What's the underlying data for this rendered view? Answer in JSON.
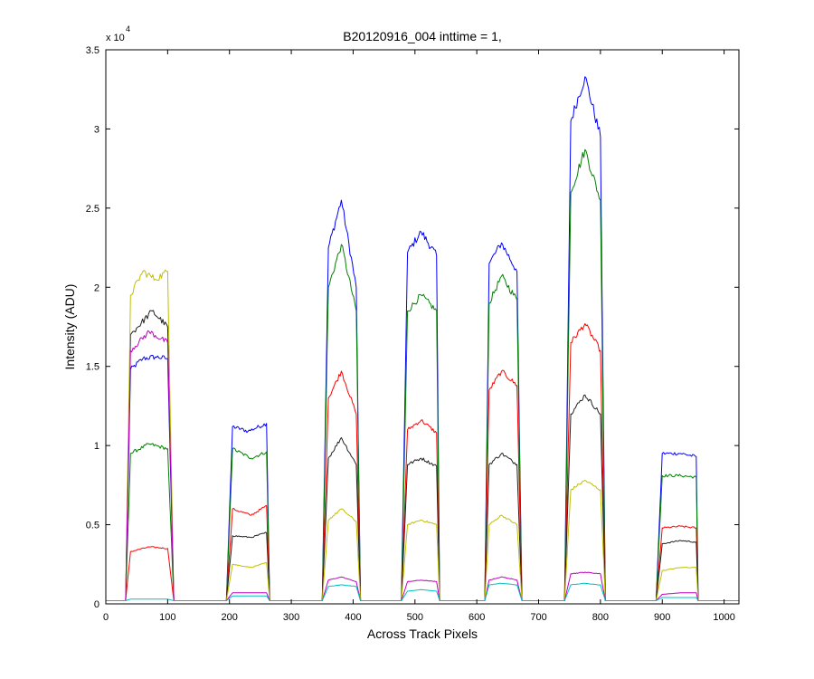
{
  "chart_data": {
    "type": "line",
    "title": "B20120916_004 inttime = 1,",
    "xlabel": "Across Track Pixels",
    "ylabel": "Intensity (ADU)",
    "y_exponent_label": "x 10",
    "y_exponent_power": "4",
    "xlim": [
      0,
      1024
    ],
    "ylim": [
      0,
      3.5
    ],
    "x_ticks": [
      0,
      100,
      200,
      300,
      400,
      500,
      600,
      700,
      800,
      900,
      1000
    ],
    "x_tick_labels": [
      "0",
      "100",
      "200",
      "300",
      "400",
      "500",
      "600",
      "700",
      "800",
      "900",
      "1000"
    ],
    "y_ticks": [
      0,
      0.5,
      1,
      1.5,
      2,
      2.5,
      3,
      3.5
    ],
    "y_tick_labels": [
      "0",
      "0.5",
      "1",
      "1.5",
      "2",
      "2.5",
      "3",
      "3.5"
    ],
    "grid": false,
    "legend": false,
    "segments": [
      {
        "start": 32,
        "end": 110
      },
      {
        "start": 195,
        "end": 265
      },
      {
        "start": 350,
        "end": 412
      },
      {
        "start": 478,
        "end": 540
      },
      {
        "start": 613,
        "end": 673
      },
      {
        "start": 742,
        "end": 808
      },
      {
        "start": 890,
        "end": 958
      }
    ],
    "series": [
      {
        "color": "#0000ff",
        "values": [
          [
            0,
            0.02
          ],
          [
            32,
            0.02
          ],
          [
            40,
            1.48
          ],
          [
            60,
            1.55
          ],
          [
            80,
            1.56
          ],
          [
            100,
            1.55
          ],
          [
            110,
            0.02
          ],
          [
            195,
            0.02
          ],
          [
            205,
            1.12
          ],
          [
            230,
            1.09
          ],
          [
            260,
            1.14
          ],
          [
            265,
            0.02
          ],
          [
            350,
            0.02
          ],
          [
            360,
            2.25
          ],
          [
            381,
            2.55
          ],
          [
            405,
            2.0
          ],
          [
            412,
            0.02
          ],
          [
            478,
            0.02
          ],
          [
            488,
            2.22
          ],
          [
            510,
            2.35
          ],
          [
            535,
            2.2
          ],
          [
            540,
            0.02
          ],
          [
            613,
            0.02
          ],
          [
            620,
            2.15
          ],
          [
            640,
            2.28
          ],
          [
            665,
            2.1
          ],
          [
            673,
            0.02
          ],
          [
            742,
            0.02
          ],
          [
            752,
            3.05
          ],
          [
            775,
            3.33
          ],
          [
            800,
            2.95
          ],
          [
            808,
            0.02
          ],
          [
            890,
            0.02
          ],
          [
            900,
            0.95
          ],
          [
            930,
            0.95
          ],
          [
            955,
            0.93
          ],
          [
            958,
            0.02
          ],
          [
            1024,
            0.02
          ]
        ]
      },
      {
        "color": "#008000",
        "values": [
          [
            0,
            0.02
          ],
          [
            32,
            0.02
          ],
          [
            40,
            0.95
          ],
          [
            70,
            1.01
          ],
          [
            100,
            0.98
          ],
          [
            110,
            0.02
          ],
          [
            195,
            0.02
          ],
          [
            205,
            0.98
          ],
          [
            235,
            0.92
          ],
          [
            260,
            0.96
          ],
          [
            265,
            0.02
          ],
          [
            350,
            0.02
          ],
          [
            360,
            2.0
          ],
          [
            381,
            2.27
          ],
          [
            405,
            1.85
          ],
          [
            412,
            0.02
          ],
          [
            478,
            0.02
          ],
          [
            488,
            1.85
          ],
          [
            510,
            1.95
          ],
          [
            535,
            1.85
          ],
          [
            540,
            0.02
          ],
          [
            613,
            0.02
          ],
          [
            620,
            1.9
          ],
          [
            640,
            2.07
          ],
          [
            665,
            1.92
          ],
          [
            673,
            0.02
          ],
          [
            742,
            0.02
          ],
          [
            752,
            2.6
          ],
          [
            775,
            2.87
          ],
          [
            800,
            2.55
          ],
          [
            808,
            0.02
          ],
          [
            890,
            0.02
          ],
          [
            900,
            0.81
          ],
          [
            930,
            0.81
          ],
          [
            955,
            0.8
          ],
          [
            958,
            0.02
          ],
          [
            1024,
            0.02
          ]
        ]
      },
      {
        "color": "#ff0000",
        "values": [
          [
            0,
            0.02
          ],
          [
            32,
            0.02
          ],
          [
            40,
            0.33
          ],
          [
            70,
            0.36
          ],
          [
            100,
            0.35
          ],
          [
            110,
            0.02
          ],
          [
            195,
            0.02
          ],
          [
            205,
            0.6
          ],
          [
            235,
            0.56
          ],
          [
            260,
            0.62
          ],
          [
            265,
            0.02
          ],
          [
            350,
            0.02
          ],
          [
            360,
            1.3
          ],
          [
            381,
            1.47
          ],
          [
            405,
            1.2
          ],
          [
            412,
            0.02
          ],
          [
            478,
            0.02
          ],
          [
            488,
            1.1
          ],
          [
            510,
            1.16
          ],
          [
            535,
            1.08
          ],
          [
            540,
            0.02
          ],
          [
            613,
            0.02
          ],
          [
            620,
            1.35
          ],
          [
            640,
            1.47
          ],
          [
            665,
            1.38
          ],
          [
            673,
            0.02
          ],
          [
            742,
            0.02
          ],
          [
            752,
            1.65
          ],
          [
            775,
            1.77
          ],
          [
            800,
            1.6
          ],
          [
            808,
            0.02
          ],
          [
            890,
            0.02
          ],
          [
            900,
            0.48
          ],
          [
            930,
            0.49
          ],
          [
            955,
            0.48
          ],
          [
            958,
            0.02
          ],
          [
            1024,
            0.02
          ]
        ]
      },
      {
        "color": "#222222",
        "values": [
          [
            0,
            0.02
          ],
          [
            32,
            0.02
          ],
          [
            40,
            1.7
          ],
          [
            75,
            1.85
          ],
          [
            100,
            1.75
          ],
          [
            110,
            0.02
          ],
          [
            195,
            0.02
          ],
          [
            205,
            0.43
          ],
          [
            235,
            0.42
          ],
          [
            260,
            0.45
          ],
          [
            265,
            0.02
          ],
          [
            350,
            0.02
          ],
          [
            360,
            0.92
          ],
          [
            381,
            1.05
          ],
          [
            405,
            0.88
          ],
          [
            412,
            0.02
          ],
          [
            478,
            0.02
          ],
          [
            488,
            0.88
          ],
          [
            510,
            0.92
          ],
          [
            535,
            0.87
          ],
          [
            540,
            0.02
          ],
          [
            613,
            0.02
          ],
          [
            620,
            0.88
          ],
          [
            640,
            0.95
          ],
          [
            665,
            0.88
          ],
          [
            673,
            0.02
          ],
          [
            742,
            0.02
          ],
          [
            752,
            1.2
          ],
          [
            775,
            1.32
          ],
          [
            800,
            1.2
          ],
          [
            808,
            0.02
          ],
          [
            890,
            0.02
          ],
          [
            900,
            0.38
          ],
          [
            930,
            0.4
          ],
          [
            955,
            0.39
          ],
          [
            958,
            0.02
          ],
          [
            1024,
            0.02
          ]
        ]
      },
      {
        "color": "#c0c000",
        "values": [
          [
            0,
            0.02
          ],
          [
            32,
            0.02
          ],
          [
            40,
            1.95
          ],
          [
            60,
            2.1
          ],
          [
            80,
            2.05
          ],
          [
            100,
            2.1
          ],
          [
            110,
            0.02
          ],
          [
            195,
            0.02
          ],
          [
            205,
            0.25
          ],
          [
            235,
            0.23
          ],
          [
            260,
            0.26
          ],
          [
            265,
            0.02
          ],
          [
            350,
            0.02
          ],
          [
            360,
            0.53
          ],
          [
            381,
            0.6
          ],
          [
            405,
            0.52
          ],
          [
            412,
            0.02
          ],
          [
            478,
            0.02
          ],
          [
            488,
            0.5
          ],
          [
            510,
            0.53
          ],
          [
            535,
            0.5
          ],
          [
            540,
            0.02
          ],
          [
            613,
            0.02
          ],
          [
            620,
            0.5
          ],
          [
            640,
            0.56
          ],
          [
            665,
            0.5
          ],
          [
            673,
            0.02
          ],
          [
            742,
            0.02
          ],
          [
            752,
            0.72
          ],
          [
            775,
            0.78
          ],
          [
            800,
            0.72
          ],
          [
            808,
            0.02
          ],
          [
            890,
            0.02
          ],
          [
            900,
            0.21
          ],
          [
            930,
            0.23
          ],
          [
            955,
            0.23
          ],
          [
            958,
            0.02
          ],
          [
            1024,
            0.02
          ]
        ]
      },
      {
        "color": "#bf00bf",
        "values": [
          [
            0,
            0.02
          ],
          [
            32,
            0.02
          ],
          [
            40,
            1.6
          ],
          [
            70,
            1.72
          ],
          [
            100,
            1.65
          ],
          [
            110,
            0.02
          ],
          [
            195,
            0.02
          ],
          [
            205,
            0.07
          ],
          [
            235,
            0.07
          ],
          [
            260,
            0.07
          ],
          [
            265,
            0.02
          ],
          [
            350,
            0.02
          ],
          [
            360,
            0.15
          ],
          [
            381,
            0.17
          ],
          [
            405,
            0.14
          ],
          [
            412,
            0.02
          ],
          [
            478,
            0.02
          ],
          [
            488,
            0.14
          ],
          [
            510,
            0.15
          ],
          [
            535,
            0.14
          ],
          [
            540,
            0.02
          ],
          [
            613,
            0.02
          ],
          [
            620,
            0.15
          ],
          [
            640,
            0.17
          ],
          [
            665,
            0.15
          ],
          [
            673,
            0.02
          ],
          [
            742,
            0.02
          ],
          [
            752,
            0.19
          ],
          [
            775,
            0.2
          ],
          [
            800,
            0.19
          ],
          [
            808,
            0.02
          ],
          [
            890,
            0.02
          ],
          [
            900,
            0.06
          ],
          [
            930,
            0.07
          ],
          [
            955,
            0.07
          ],
          [
            958,
            0.02
          ],
          [
            1024,
            0.02
          ]
        ]
      },
      {
        "color": "#00bfbf",
        "values": [
          [
            0,
            0.02
          ],
          [
            32,
            0.02
          ],
          [
            40,
            0.03
          ],
          [
            70,
            0.03
          ],
          [
            100,
            0.03
          ],
          [
            110,
            0.02
          ],
          [
            195,
            0.02
          ],
          [
            205,
            0.05
          ],
          [
            235,
            0.05
          ],
          [
            260,
            0.05
          ],
          [
            265,
            0.02
          ],
          [
            350,
            0.02
          ],
          [
            360,
            0.11
          ],
          [
            381,
            0.12
          ],
          [
            405,
            0.11
          ],
          [
            412,
            0.02
          ],
          [
            478,
            0.02
          ],
          [
            488,
            0.08
          ],
          [
            510,
            0.09
          ],
          [
            535,
            0.08
          ],
          [
            540,
            0.02
          ],
          [
            613,
            0.02
          ],
          [
            620,
            0.12
          ],
          [
            640,
            0.13
          ],
          [
            665,
            0.12
          ],
          [
            673,
            0.02
          ],
          [
            742,
            0.02
          ],
          [
            752,
            0.12
          ],
          [
            775,
            0.13
          ],
          [
            800,
            0.12
          ],
          [
            808,
            0.02
          ],
          [
            890,
            0.02
          ],
          [
            900,
            0.04
          ],
          [
            930,
            0.04
          ],
          [
            955,
            0.04
          ],
          [
            958,
            0.02
          ],
          [
            1024,
            0.02
          ]
        ]
      }
    ]
  }
}
